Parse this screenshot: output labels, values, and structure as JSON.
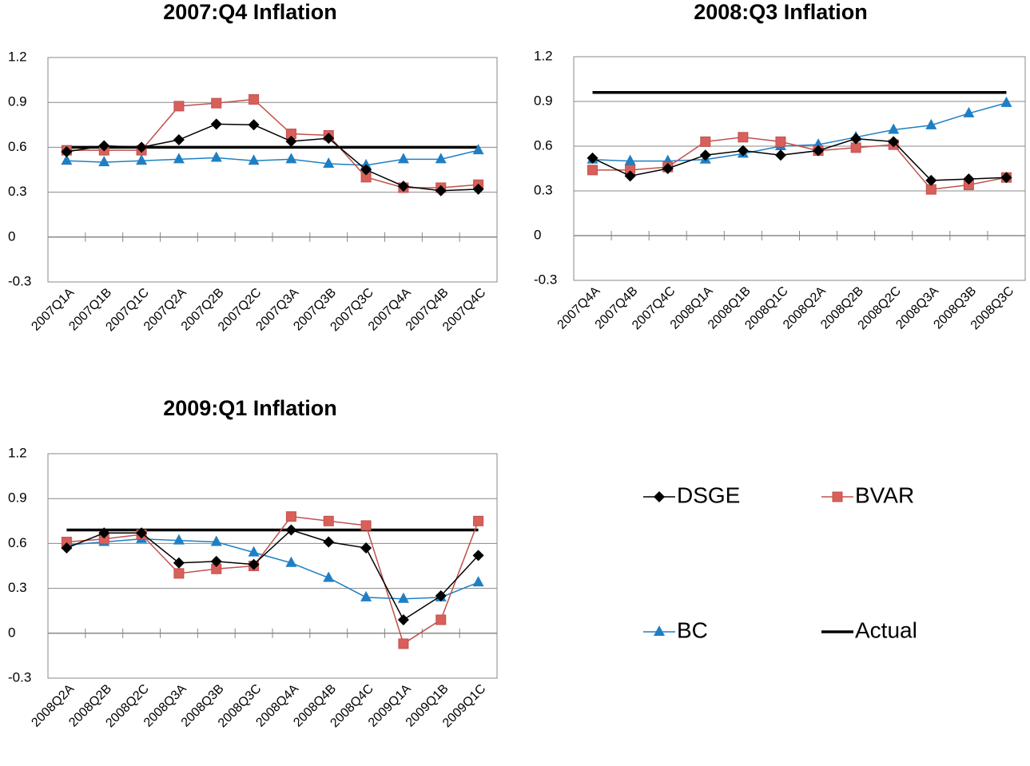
{
  "chart_data": [
    {
      "type": "line",
      "title": "2007:Q4 Inflation",
      "categories": [
        "2007Q1A",
        "2007Q1B",
        "2007Q1C",
        "2007Q2A",
        "2007Q2B",
        "2007Q2C",
        "2007Q3A",
        "2007Q3B",
        "2007Q3C",
        "2007Q4A",
        "2007Q4B",
        "2007Q4C"
      ],
      "ylim": [
        -0.3,
        1.2
      ],
      "yticks": [
        -0.3,
        0,
        0.3,
        0.6,
        0.9,
        1.2
      ],
      "grid": true,
      "series": [
        {
          "name": "DSGE",
          "color": "#000000",
          "marker": "diamond",
          "values": [
            0.57,
            0.61,
            0.6,
            0.65,
            0.755,
            0.75,
            0.64,
            0.66,
            0.45,
            0.34,
            0.31,
            0.32
          ]
        },
        {
          "name": "BVAR",
          "color": "#c0504d",
          "marker": "square",
          "values": [
            0.58,
            0.58,
            0.58,
            0.875,
            0.895,
            0.92,
            0.69,
            0.68,
            0.4,
            0.33,
            0.33,
            0.35
          ]
        },
        {
          "name": "BC",
          "color": "#1f7fc4",
          "marker": "triangle",
          "values": [
            0.51,
            0.5,
            0.51,
            0.52,
            0.53,
            0.51,
            0.52,
            0.49,
            0.48,
            0.52,
            0.52,
            0.58
          ]
        },
        {
          "name": "Actual",
          "color": "#000000",
          "marker": "none",
          "values": [
            0.6,
            0.6,
            0.6,
            0.6,
            0.6,
            0.6,
            0.6,
            0.6,
            0.6,
            0.6,
            0.6,
            0.6
          ]
        }
      ]
    },
    {
      "type": "line",
      "title": "2008:Q3 Inflation",
      "categories": [
        "2007Q4A",
        "2007Q4B",
        "2007Q4C",
        "2008Q1A",
        "2008Q1B",
        "2008Q1C",
        "2008Q2A",
        "2008Q2B",
        "2008Q2C",
        "2008Q3A",
        "2008Q3B",
        "2008Q3C"
      ],
      "ylim": [
        -0.3,
        1.2
      ],
      "yticks": [
        -0.3,
        0,
        0.3,
        0.6,
        0.9,
        1.2
      ],
      "grid": true,
      "series": [
        {
          "name": "DSGE",
          "color": "#000000",
          "marker": "diamond",
          "values": [
            0.52,
            0.4,
            0.45,
            0.54,
            0.57,
            0.54,
            0.57,
            0.65,
            0.63,
            0.37,
            0.38,
            0.39
          ]
        },
        {
          "name": "BVAR",
          "color": "#c0504d",
          "marker": "square",
          "values": [
            0.44,
            0.44,
            0.46,
            0.63,
            0.66,
            0.63,
            0.57,
            0.59,
            0.61,
            0.31,
            0.34,
            0.39
          ]
        },
        {
          "name": "BC",
          "color": "#1f7fc4",
          "marker": "triangle",
          "values": [
            0.51,
            0.5,
            0.5,
            0.51,
            0.55,
            0.6,
            0.61,
            0.66,
            0.71,
            0.74,
            0.82,
            0.89
          ]
        },
        {
          "name": "Actual",
          "color": "#000000",
          "marker": "none",
          "values": [
            0.96,
            0.96,
            0.96,
            0.96,
            0.96,
            0.96,
            0.96,
            0.96,
            0.96,
            0.96,
            0.96,
            0.96
          ]
        }
      ]
    },
    {
      "type": "line",
      "title": "2009:Q1 Inflation",
      "categories": [
        "2008Q2A",
        "2008Q2B",
        "2008Q2C",
        "2008Q3A",
        "2008Q3B",
        "2008Q3C",
        "2008Q4A",
        "2008Q4B",
        "2008Q4C",
        "2009Q1A",
        "2009Q1B",
        "2009Q1C"
      ],
      "ylim": [
        -0.3,
        1.2
      ],
      "yticks": [
        -0.3,
        0,
        0.3,
        0.6,
        0.9,
        1.2
      ],
      "grid": true,
      "series": [
        {
          "name": "DSGE",
          "color": "#000000",
          "marker": "diamond",
          "values": [
            0.57,
            0.67,
            0.67,
            0.47,
            0.48,
            0.46,
            0.69,
            0.61,
            0.57,
            0.09,
            0.25,
            0.52
          ]
        },
        {
          "name": "BVAR",
          "color": "#c0504d",
          "marker": "square",
          "values": [
            0.61,
            0.63,
            0.66,
            0.4,
            0.43,
            0.45,
            0.78,
            0.75,
            0.72,
            -0.07,
            0.09,
            0.75
          ]
        },
        {
          "name": "BC",
          "color": "#1f7fc4",
          "marker": "triangle",
          "values": [
            0.59,
            0.61,
            0.63,
            0.62,
            0.61,
            0.54,
            0.47,
            0.37,
            0.24,
            0.23,
            0.24,
            0.34
          ]
        },
        {
          "name": "Actual",
          "color": "#000000",
          "marker": "none",
          "values": [
            0.69,
            0.69,
            0.69,
            0.69,
            0.69,
            0.69,
            0.69,
            0.69,
            0.69,
            0.69,
            0.69,
            0.69
          ]
        }
      ]
    }
  ]
}
